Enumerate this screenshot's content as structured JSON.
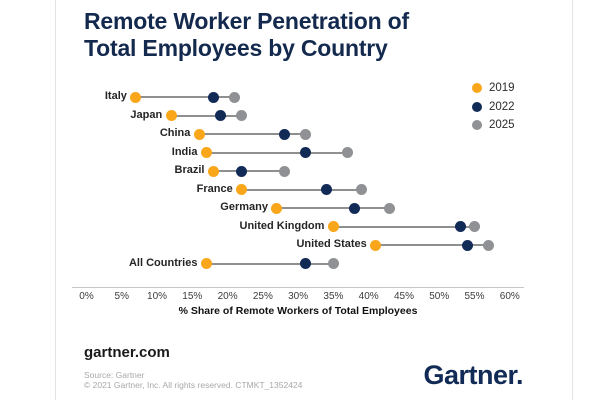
{
  "title": {
    "line1": "Remote Worker Penetration of",
    "line2": "Total Employees by Country"
  },
  "colors": {
    "series_2019": "#f9a61a",
    "series_2022": "#112a56",
    "series_2025": "#8f9194",
    "connector": "#8f8f8f",
    "title_navy": "#14294e"
  },
  "chart_data": {
    "type": "scatter",
    "variant": "dumbbell-dot-plot",
    "title": "Remote Worker Penetration of Total Employees by Country",
    "categories": [
      "Italy",
      "Japan",
      "China",
      "India",
      "Brazil",
      "France",
      "Germany",
      "United Kingdom",
      "United States",
      "All Countries"
    ],
    "series": [
      {
        "name": "2019",
        "color": "#f9a61a",
        "values": [
          7,
          12,
          16,
          17,
          18,
          22,
          27,
          35,
          41,
          17
        ]
      },
      {
        "name": "2022",
        "color": "#112a56",
        "values": [
          18,
          19,
          28,
          31,
          22,
          34,
          38,
          53,
          54,
          31
        ]
      },
      {
        "name": "2025",
        "color": "#8f9194",
        "values": [
          21,
          22,
          31,
          37,
          28,
          39,
          43,
          55,
          57,
          35
        ]
      }
    ],
    "xlabel": "% Share of Remote Workers of Total Employees",
    "x_ticks": [
      "0%",
      "5%",
      "10%",
      "15%",
      "20%",
      "25%",
      "30%",
      "35%",
      "40%",
      "45%",
      "50%",
      "55%",
      "60%"
    ],
    "xlim": [
      0,
      60
    ],
    "grid": false,
    "legend_position": "top-right"
  },
  "legend": [
    {
      "label": "2019"
    },
    {
      "label": "2022"
    },
    {
      "label": "2025"
    }
  ],
  "footer": {
    "site": "gartner.com",
    "source_line1": "Source: Gartner",
    "source_line2": "© 2021 Gartner, Inc. All rights reserved. CTMKT_1352424",
    "logo": "Gartner."
  }
}
